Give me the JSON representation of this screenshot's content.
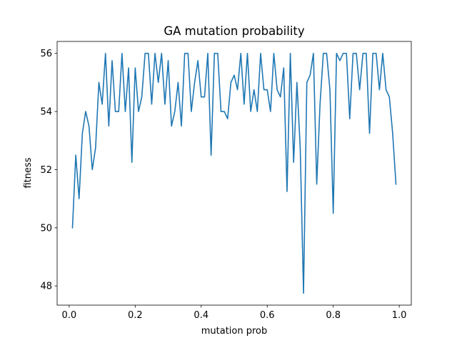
{
  "chart_data": {
    "type": "line",
    "title": "GA mutation probability",
    "xlabel": "mutation prob",
    "ylabel": "fitness",
    "xlim": [
      -0.0365,
      1.0365
    ],
    "ylim": [
      47.34,
      56.41
    ],
    "x_ticks": [
      {
        "value": 0.0,
        "label": "0.0"
      },
      {
        "value": 0.2,
        "label": "0.2"
      },
      {
        "value": 0.4,
        "label": "0.4"
      },
      {
        "value": 0.6,
        "label": "0.6"
      },
      {
        "value": 0.8,
        "label": "0.8"
      },
      {
        "value": 1.0,
        "label": "1.0"
      }
    ],
    "y_ticks": [
      {
        "value": 48,
        "label": "48"
      },
      {
        "value": 50,
        "label": "50"
      },
      {
        "value": 52,
        "label": "52"
      },
      {
        "value": 54,
        "label": "54"
      },
      {
        "value": 56,
        "label": "56"
      }
    ],
    "grid": false,
    "legend": "none",
    "series": [
      {
        "color": "#1f77b4",
        "x": [
          0.01,
          0.02,
          0.03,
          0.04,
          0.05,
          0.06,
          0.07,
          0.08,
          0.09,
          0.1,
          0.11,
          0.12,
          0.13,
          0.14,
          0.15,
          0.16,
          0.17,
          0.18,
          0.19,
          0.2,
          0.21,
          0.22,
          0.23,
          0.24,
          0.25,
          0.26,
          0.27,
          0.28,
          0.29,
          0.3,
          0.31,
          0.32,
          0.33,
          0.34,
          0.35,
          0.36,
          0.37,
          0.38,
          0.39,
          0.4,
          0.41,
          0.42,
          0.43,
          0.44,
          0.45,
          0.46,
          0.47,
          0.48,
          0.49,
          0.5,
          0.51,
          0.52,
          0.53,
          0.54,
          0.55,
          0.56,
          0.57,
          0.58,
          0.59,
          0.6,
          0.61,
          0.62,
          0.63,
          0.64,
          0.65,
          0.66,
          0.67,
          0.68,
          0.69,
          0.7,
          0.71,
          0.72,
          0.73,
          0.74,
          0.75,
          0.76,
          0.77,
          0.78,
          0.79,
          0.8,
          0.81,
          0.82,
          0.83,
          0.84,
          0.85,
          0.86,
          0.87,
          0.88,
          0.89,
          0.9,
          0.91,
          0.92,
          0.93,
          0.94,
          0.95,
          0.96,
          0.97,
          0.98,
          0.99
        ],
        "y": [
          50.0,
          52.5,
          51.0,
          53.25,
          54.0,
          53.5,
          52.0,
          52.75,
          55.0,
          54.25,
          56.0,
          53.5,
          55.75,
          54.0,
          54.0,
          56.0,
          54.0,
          55.5,
          52.25,
          55.5,
          54.0,
          54.5,
          56.0,
          56.0,
          54.25,
          56.0,
          55.0,
          56.0,
          54.25,
          55.75,
          53.5,
          54.0,
          55.0,
          53.5,
          56.0,
          56.0,
          54.0,
          55.0,
          55.75,
          54.5,
          54.5,
          56.0,
          52.5,
          56.0,
          56.0,
          54.0,
          54.0,
          53.75,
          55.0,
          55.25,
          54.75,
          56.0,
          54.25,
          56.0,
          54.0,
          54.75,
          54.0,
          56.0,
          54.75,
          54.75,
          54.0,
          56.0,
          54.75,
          54.5,
          55.5,
          51.25,
          56.0,
          52.25,
          55.0,
          52.75,
          47.75,
          55.0,
          55.25,
          56.0,
          51.5,
          54.25,
          56.0,
          56.0,
          54.75,
          50.5,
          56.0,
          55.75,
          56.0,
          56.0,
          53.75,
          56.0,
          56.0,
          54.75,
          56.0,
          56.0,
          53.25,
          56.0,
          56.0,
          54.75,
          56.0,
          54.75,
          54.5,
          53.25,
          51.5
        ]
      }
    ]
  }
}
